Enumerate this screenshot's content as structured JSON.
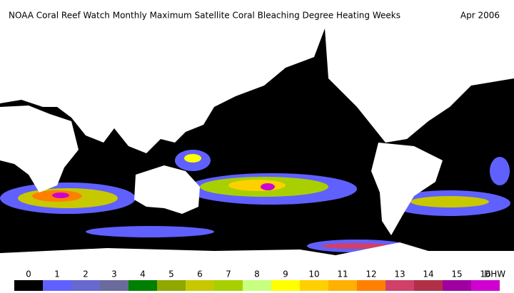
{
  "header": {
    "title": "NOAA Coral Reef Watch Monthly Maximum Satellite Coral Bleaching Degree Heating Weeks",
    "date": "Apr 2006"
  },
  "legend": {
    "unit": "DHW",
    "items": [
      {
        "label": "0",
        "color": "#000000"
      },
      {
        "label": "1",
        "color": "#6060ff"
      },
      {
        "label": "2",
        "color": "#6868d0"
      },
      {
        "label": "3",
        "color": "#6a6a9c"
      },
      {
        "label": "4",
        "color": "#008000"
      },
      {
        "label": "5",
        "color": "#90a800"
      },
      {
        "label": "6",
        "color": "#c8c800"
      },
      {
        "label": "7",
        "color": "#a8d000"
      },
      {
        "label": "8",
        "color": "#c8ff80"
      },
      {
        "label": "9",
        "color": "#ffff00"
      },
      {
        "label": "10",
        "color": "#ffd000"
      },
      {
        "label": "11",
        "color": "#ffb000"
      },
      {
        "label": "12",
        "color": "#ff8000"
      },
      {
        "label": "13",
        "color": "#d04068"
      },
      {
        "label": "14",
        "color": "#b03048"
      },
      {
        "label": "15",
        "color": "#a000a0"
      },
      {
        "label": "16",
        "color": "#d000d0"
      }
    ]
  }
}
